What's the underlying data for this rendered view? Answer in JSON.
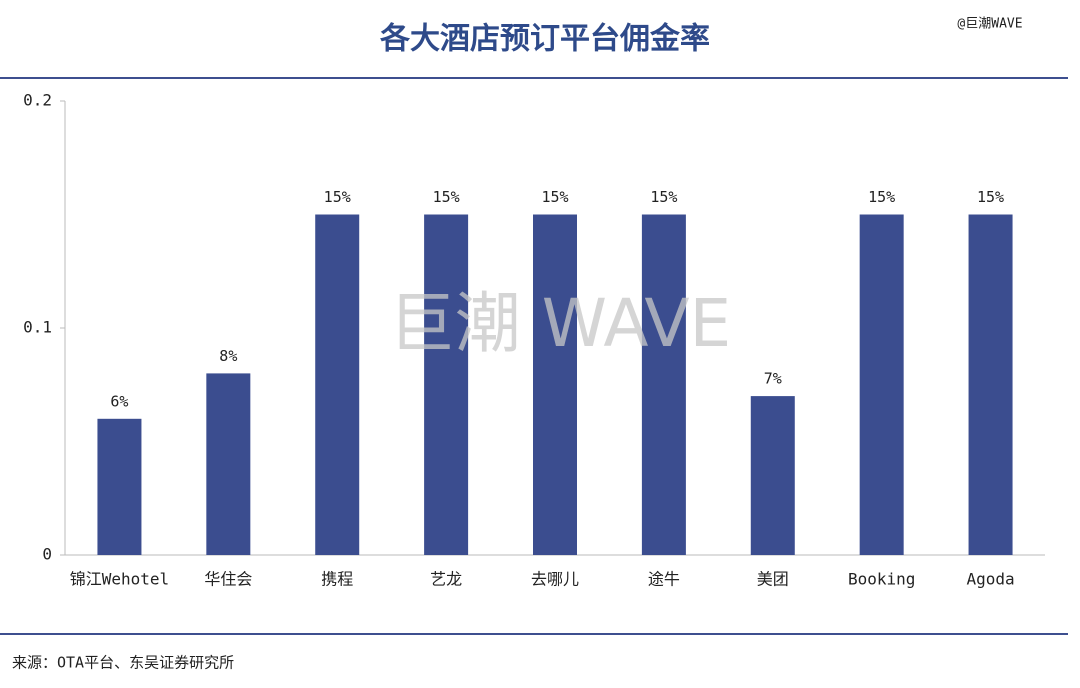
{
  "chart_data": {
    "type": "bar",
    "title": "各大酒店预订平台佣金率",
    "brand": "@巨潮WAVE",
    "watermark": "巨潮 WAVE",
    "source": "来源：OTA平台、东吴证券研究所",
    "categories": [
      "锦江Wehotel",
      "华住会",
      "携程",
      "艺龙",
      "去哪儿",
      "途牛",
      "美团",
      "Booking",
      "Agoda"
    ],
    "values": [
      0.06,
      0.08,
      0.15,
      0.15,
      0.15,
      0.15,
      0.07,
      0.15,
      0.15
    ],
    "value_labels": [
      "6%",
      "8%",
      "15%",
      "15%",
      "15%",
      "15%",
      "7%",
      "15%",
      "15%"
    ],
    "color": "#3b4d8f",
    "ylim": [
      0,
      0.2
    ],
    "yticks": [
      0,
      0.1,
      0.2
    ],
    "grid": false
  }
}
